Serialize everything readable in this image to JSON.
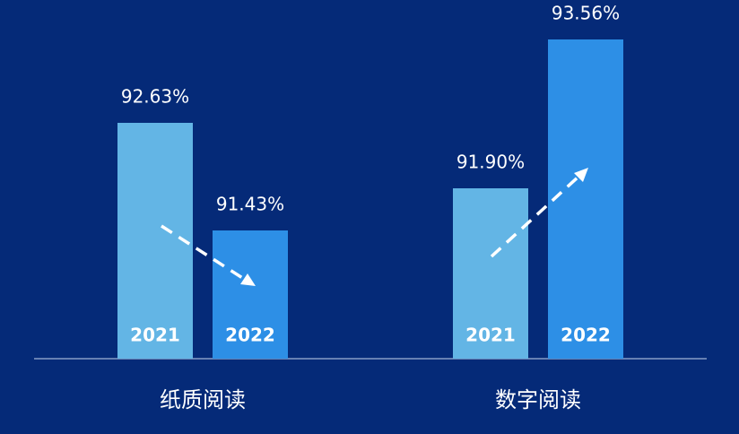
{
  "chart_data": {
    "type": "bar",
    "categories": [
      "纸质阅读",
      "数字阅读"
    ],
    "series": [
      {
        "name": "2021",
        "color": "#63b5e5",
        "values": [
          92.63,
          91.9
        ],
        "value_labels": [
          "92.63%",
          "91.90%"
        ]
      },
      {
        "name": "2022",
        "color": "#2d8fe6",
        "values": [
          91.43,
          93.56
        ],
        "value_labels": [
          "91.43%",
          "93.56%"
        ]
      }
    ],
    "ylim": [
      90,
      94
    ]
  }
}
